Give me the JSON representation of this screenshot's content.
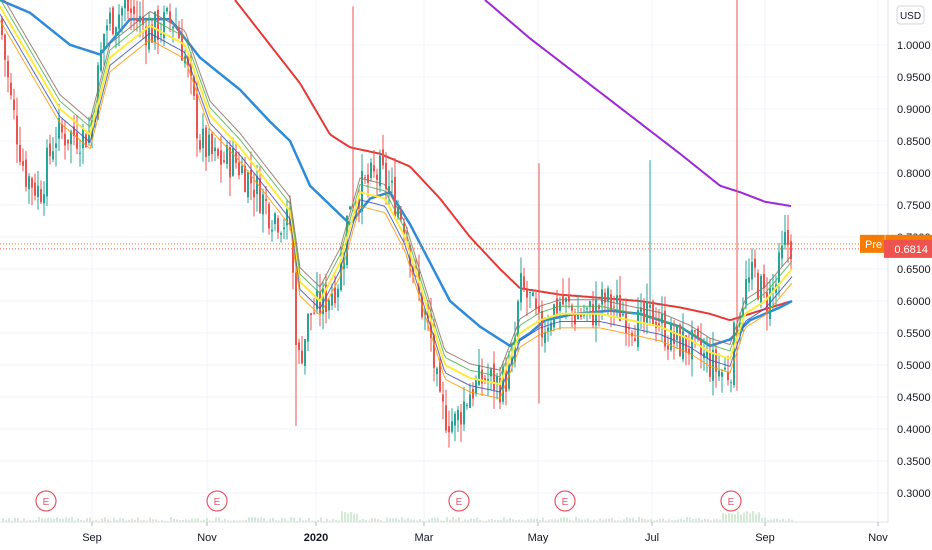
{
  "chart_data": {
    "type": "candlestick",
    "currency": "USD",
    "x_axis": {
      "labels": [
        "Sep",
        "Nov",
        "2020",
        "Mar",
        "May",
        "Jul",
        "Sep",
        "Nov"
      ],
      "year_label": "2020"
    },
    "y_axis": {
      "ticks": [
        "1.0000",
        "0.9500",
        "0.9000",
        "0.8500",
        "0.8000",
        "0.7500",
        "0.7000",
        "0.6500",
        "0.6000",
        "0.5500",
        "0.5000",
        "0.4500",
        "0.4000",
        "0.3500",
        "0.3000"
      ],
      "range": [
        0.255,
        1.07
      ]
    },
    "price_tags": [
      {
        "label": "Pre",
        "value": "0.6893",
        "color": "#f57c00"
      },
      {
        "label": "",
        "value": "0.6814",
        "color": "#ef5350"
      }
    ],
    "earnings_markers": [
      "E",
      "E",
      "E",
      "E",
      "E"
    ],
    "colors": {
      "up": "#26a69a",
      "down": "#ef5350",
      "ma_yellow": "#ffeb3b",
      "ma_blue": "#2e8bd8",
      "ma_red": "#e53935",
      "ma_purple": "#9c27d6",
      "ma_green": "#4caf50",
      "ma_navy": "#3f51b5",
      "ma_brown": "#8d6e63",
      "ma_orange": "#ff9800"
    },
    "anchors": [
      [
        0,
        1.04
      ],
      [
        10,
        0.92
      ],
      [
        25,
        0.8
      ],
      [
        40,
        0.77
      ],
      [
        55,
        0.86
      ],
      [
        70,
        0.86
      ],
      [
        90,
        0.86
      ],
      [
        105,
        1.03
      ],
      [
        125,
        1.06
      ],
      [
        150,
        1.02
      ],
      [
        175,
        1.04
      ],
      [
        185,
        0.98
      ],
      [
        200,
        0.85
      ],
      [
        215,
        0.82
      ],
      [
        235,
        0.82
      ],
      [
        255,
        0.78
      ],
      [
        270,
        0.74
      ],
      [
        290,
        0.72
      ],
      [
        298,
        0.5
      ],
      [
        310,
        0.58
      ],
      [
        325,
        0.6
      ],
      [
        340,
        0.64
      ],
      [
        350,
        0.76
      ],
      [
        365,
        0.78
      ],
      [
        380,
        0.8
      ],
      [
        395,
        0.76
      ],
      [
        405,
        0.72
      ],
      [
        420,
        0.6
      ],
      [
        430,
        0.55
      ],
      [
        440,
        0.43
      ],
      [
        455,
        0.41
      ],
      [
        470,
        0.46
      ],
      [
        485,
        0.48
      ],
      [
        500,
        0.47
      ],
      [
        512,
        0.49
      ],
      [
        520,
        0.62
      ],
      [
        530,
        0.6
      ],
      [
        540,
        0.55
      ],
      [
        550,
        0.58
      ],
      [
        560,
        0.6
      ],
      [
        575,
        0.58
      ],
      [
        590,
        0.58
      ],
      [
        605,
        0.6
      ],
      [
        625,
        0.58
      ],
      [
        640,
        0.56
      ],
      [
        655,
        0.58
      ],
      [
        670,
        0.54
      ],
      [
        690,
        0.53
      ],
      [
        705,
        0.51
      ],
      [
        720,
        0.49
      ],
      [
        730,
        0.49
      ],
      [
        735,
        0.55
      ],
      [
        745,
        0.62
      ],
      [
        755,
        0.64
      ],
      [
        765,
        0.6
      ],
      [
        775,
        0.62
      ],
      [
        785,
        0.69
      ],
      [
        792,
        0.69
      ]
    ],
    "spikes": [
      {
        "i": 296,
        "high": 0.67,
        "low": 0.405
      },
      {
        "i": 352,
        "high": 1.06,
        "low": 0.74
      },
      {
        "i": 540,
        "high": 0.815,
        "low": 0.44
      },
      {
        "i": 650,
        "high": 0.82,
        "low": 0.57
      },
      {
        "i": 738,
        "high": 1.07,
        "low": 0.46
      }
    ],
    "moving_averages": [
      {
        "period": 200,
        "color": "#9c27d6",
        "width": 2,
        "points": [
          [
            485,
            1.07
          ],
          [
            530,
            1.01
          ],
          [
            580,
            0.95
          ],
          [
            630,
            0.89
          ],
          [
            680,
            0.83
          ],
          [
            720,
            0.78
          ],
          [
            740,
            0.77
          ],
          [
            765,
            0.755
          ],
          [
            792,
            0.748
          ]
        ]
      },
      {
        "period": 100,
        "color": "#e53935",
        "width": 2,
        "points": [
          [
            235,
            1.07
          ],
          [
            270,
            1.0
          ],
          [
            300,
            0.94
          ],
          [
            330,
            0.86
          ],
          [
            350,
            0.84
          ],
          [
            380,
            0.83
          ],
          [
            410,
            0.81
          ],
          [
            440,
            0.76
          ],
          [
            470,
            0.7
          ],
          [
            500,
            0.65
          ],
          [
            520,
            0.62
          ],
          [
            560,
            0.61
          ],
          [
            600,
            0.605
          ],
          [
            640,
            0.6
          ],
          [
            680,
            0.59
          ],
          [
            710,
            0.58
          ],
          [
            730,
            0.57
          ],
          [
            760,
            0.585
          ],
          [
            792,
            0.6
          ]
        ]
      },
      {
        "period": 50,
        "color": "#2e8bd8",
        "width": 2.5,
        "points": [
          [
            0,
            1.07
          ],
          [
            30,
            1.05
          ],
          [
            70,
            1.0
          ],
          [
            100,
            0.985
          ],
          [
            130,
            1.04
          ],
          [
            170,
            1.04
          ],
          [
            200,
            0.98
          ],
          [
            240,
            0.93
          ],
          [
            270,
            0.88
          ],
          [
            290,
            0.85
          ],
          [
            310,
            0.78
          ],
          [
            330,
            0.75
          ],
          [
            350,
            0.72
          ],
          [
            370,
            0.76
          ],
          [
            390,
            0.77
          ],
          [
            410,
            0.72
          ],
          [
            430,
            0.66
          ],
          [
            450,
            0.6
          ],
          [
            480,
            0.56
          ],
          [
            510,
            0.53
          ],
          [
            530,
            0.55
          ],
          [
            545,
            0.57
          ],
          [
            575,
            0.58
          ],
          [
            610,
            0.585
          ],
          [
            640,
            0.58
          ],
          [
            680,
            0.56
          ],
          [
            710,
            0.53
          ],
          [
            730,
            0.54
          ],
          [
            750,
            0.57
          ],
          [
            780,
            0.59
          ],
          [
            792,
            0.6
          ]
        ]
      },
      {
        "period": 20,
        "color": "#ffeb3b",
        "width": 2,
        "points": [
          [
            0,
            1.06
          ],
          [
            30,
            0.98
          ],
          [
            60,
            0.9
          ],
          [
            90,
            0.86
          ],
          [
            110,
            0.98
          ],
          [
            150,
            1.03
          ],
          [
            185,
            1.0
          ],
          [
            210,
            0.89
          ],
          [
            240,
            0.84
          ],
          [
            270,
            0.78
          ],
          [
            290,
            0.74
          ],
          [
            300,
            0.63
          ],
          [
            320,
            0.6
          ],
          [
            340,
            0.66
          ],
          [
            360,
            0.77
          ],
          [
            385,
            0.76
          ],
          [
            405,
            0.7
          ],
          [
            425,
            0.6
          ],
          [
            445,
            0.5
          ],
          [
            470,
            0.48
          ],
          [
            500,
            0.47
          ],
          [
            520,
            0.55
          ],
          [
            540,
            0.57
          ],
          [
            560,
            0.58
          ],
          [
            600,
            0.58
          ],
          [
            630,
            0.57
          ],
          [
            660,
            0.56
          ],
          [
            690,
            0.54
          ],
          [
            710,
            0.52
          ],
          [
            730,
            0.51
          ],
          [
            745,
            0.58
          ],
          [
            765,
            0.6
          ],
          [
            792,
            0.65
          ]
        ]
      }
    ],
    "short_ma_offsets": [
      {
        "color": "#4caf50",
        "offset": 0.012
      },
      {
        "color": "#3f51b5",
        "offset": -0.012
      },
      {
        "color": "#8d6e63",
        "offset": 0.022
      },
      {
        "color": "#ff9800",
        "offset": -0.022
      }
    ]
  }
}
